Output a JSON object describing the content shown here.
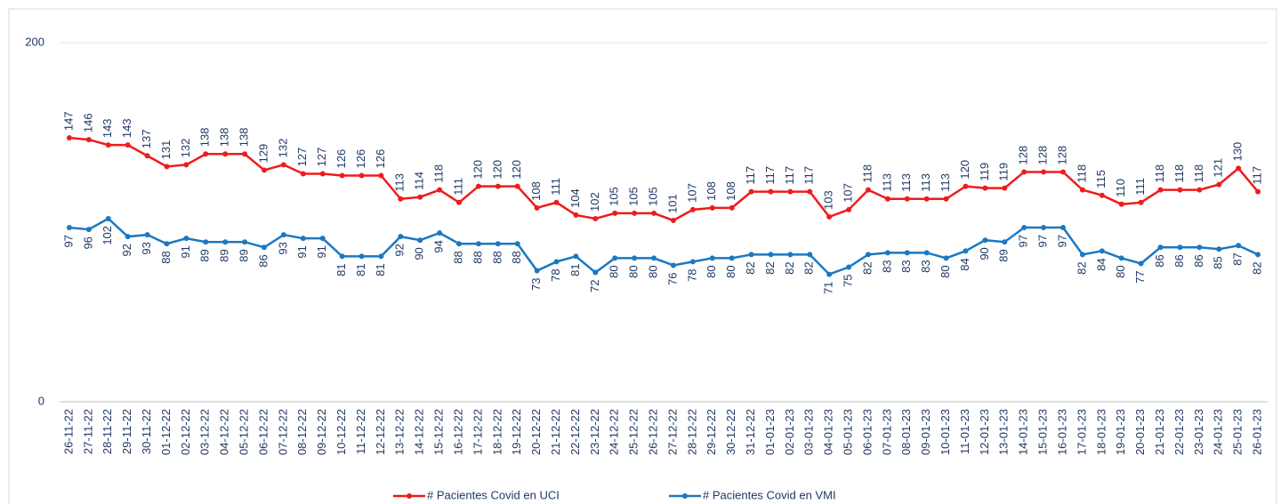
{
  "chart_data": {
    "type": "line",
    "categories": [
      "26-11-22",
      "27-11-22",
      "28-11-22",
      "29-11-22",
      "30-11-22",
      "01-12-22",
      "02-12-22",
      "03-12-22",
      "04-12-22",
      "05-12-22",
      "06-12-22",
      "07-12-22",
      "08-12-22",
      "09-12-22",
      "10-12-22",
      "11-12-22",
      "12-12-22",
      "13-12-22",
      "14-12-22",
      "15-12-22",
      "16-12-22",
      "17-12-22",
      "18-12-22",
      "19-12-22",
      "20-12-22",
      "21-12-22",
      "22-12-22",
      "23-12-22",
      "24-12-22",
      "25-12-22",
      "26-12-22",
      "27-12-22",
      "28-12-22",
      "29-12-22",
      "30-12-22",
      "31-12-22",
      "01-01-23",
      "02-01-23",
      "03-01-23",
      "04-01-23",
      "05-01-23",
      "06-01-23",
      "07-01-23",
      "08-01-23",
      "09-01-23",
      "10-01-23",
      "11-01-23",
      "12-01-23",
      "13-01-23",
      "14-01-23",
      "15-01-23",
      "16-01-23",
      "17-01-23",
      "18-01-23",
      "19-01-23",
      "20-01-23",
      "21-01-23",
      "22-01-23",
      "23-01-23",
      "24-01-23",
      "25-01-23",
      "26-01-23"
    ],
    "series": [
      {
        "name": "# Pacientes Covid en UCI",
        "color": "#ee1c1c",
        "values": [
          147,
          146,
          143,
          143,
          137,
          131,
          132,
          138,
          138,
          138,
          129,
          132,
          127,
          127,
          126,
          126,
          126,
          113,
          114,
          118,
          111,
          120,
          120,
          120,
          108,
          111,
          104,
          102,
          105,
          105,
          105,
          101,
          107,
          108,
          108,
          117,
          117,
          117,
          117,
          103,
          107,
          118,
          113,
          113,
          113,
          113,
          120,
          119,
          119,
          128,
          128,
          128,
          118,
          115,
          110,
          111,
          118,
          118,
          118,
          121,
          130,
          117
        ]
      },
      {
        "name": "# Pacientes Covid en VMI",
        "color": "#1b78c2",
        "values": [
          97,
          96,
          102,
          92,
          93,
          88,
          91,
          89,
          89,
          89,
          86,
          93,
          91,
          91,
          81,
          81,
          81,
          92,
          90,
          94,
          88,
          88,
          88,
          88,
          73,
          78,
          81,
          72,
          80,
          80,
          80,
          76,
          78,
          80,
          80,
          82,
          82,
          82,
          82,
          71,
          75,
          82,
          83,
          83,
          83,
          80,
          84,
          90,
          89,
          97,
          97,
          97,
          82,
          84,
          80,
          77,
          86,
          86,
          86,
          85,
          87,
          82
        ]
      }
    ],
    "ylim": [
      0,
      200
    ],
    "yticks": [
      0,
      200
    ],
    "grid": true
  }
}
